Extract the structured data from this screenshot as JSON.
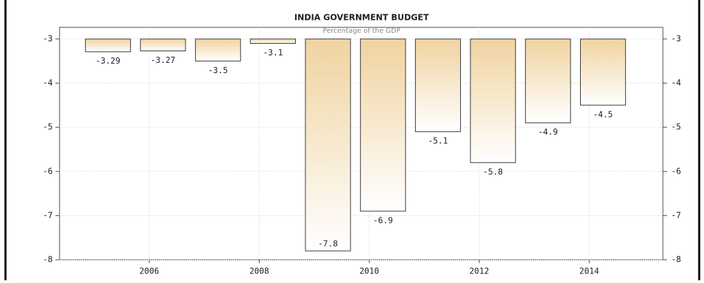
{
  "chart_data": {
    "type": "bar",
    "title": "INDIA GOVERNMENT BUDGET",
    "subtitle": "Percentage of the GDP",
    "x": [
      2005,
      2006,
      2007,
      2008,
      2009,
      2010,
      2011,
      2012,
      2013,
      2014
    ],
    "values": [
      -3.29,
      -3.27,
      -3.5,
      -3.1,
      -7.8,
      -6.9,
      -5.1,
      -5.8,
      -4.9,
      -4.5
    ],
    "color": "#f0d3a0",
    "xlim": [
      2004.37,
      2015.34
    ],
    "xticks": [
      2006,
      2008,
      2010,
      2012,
      2014
    ],
    "ylim": [
      -8,
      -3
    ],
    "yticks": [
      -3,
      -4,
      -5,
      -6,
      -7,
      -8
    ],
    "grid": true
  }
}
